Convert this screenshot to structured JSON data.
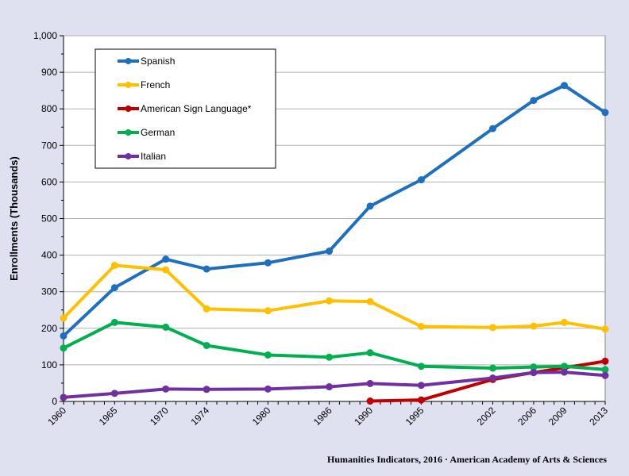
{
  "source_note": "Humanities Indicators, 2016 · American Academy of Arts & Sciences",
  "chart_data": {
    "type": "line",
    "title": "",
    "xlabel": "",
    "ylabel": "Enrollments (Thousands)",
    "x": [
      1960,
      1965,
      1970,
      1974,
      1980,
      1986,
      1990,
      1995,
      2002,
      2006,
      2009,
      2013
    ],
    "x_tick_labels": [
      "1960",
      "1965",
      "1970",
      "1974",
      "1980",
      "1986",
      "1990",
      "1995",
      "2002",
      "2006",
      "2009",
      "2013"
    ],
    "ylim": [
      0,
      1000
    ],
    "y_ticks": [
      0,
      100,
      200,
      300,
      400,
      500,
      600,
      700,
      800,
      900,
      1000
    ],
    "y_tick_labels": [
      "0",
      "100",
      "200",
      "300",
      "400",
      "500",
      "600",
      "700",
      "800",
      "900",
      "1,000"
    ],
    "grid": "horizontal",
    "legend_position": "top-left",
    "series": [
      {
        "name": "Spanish",
        "color": "#1f6fbf",
        "values": [
          179,
          311,
          389,
          362,
          379,
          411,
          534,
          606,
          746,
          823,
          864,
          790
        ]
      },
      {
        "name": "French",
        "color": "#ffc000",
        "values": [
          228,
          372,
          360,
          253,
          248,
          275,
          273,
          205,
          202,
          206,
          216,
          198
        ]
      },
      {
        "name": "American Sign Language*",
        "color": "#c00000",
        "values": [
          null,
          null,
          null,
          null,
          null,
          null,
          1,
          4,
          60,
          79,
          92,
          110
        ]
      },
      {
        "name": "German",
        "color": "#00b050",
        "values": [
          146,
          216,
          203,
          153,
          127,
          121,
          133,
          96,
          91,
          94,
          96,
          87
        ]
      },
      {
        "name": "Italian",
        "color": "#7030a0",
        "values": [
          11,
          22,
          34,
          33,
          34,
          40,
          49,
          44,
          64,
          79,
          80,
          71
        ]
      }
    ]
  }
}
